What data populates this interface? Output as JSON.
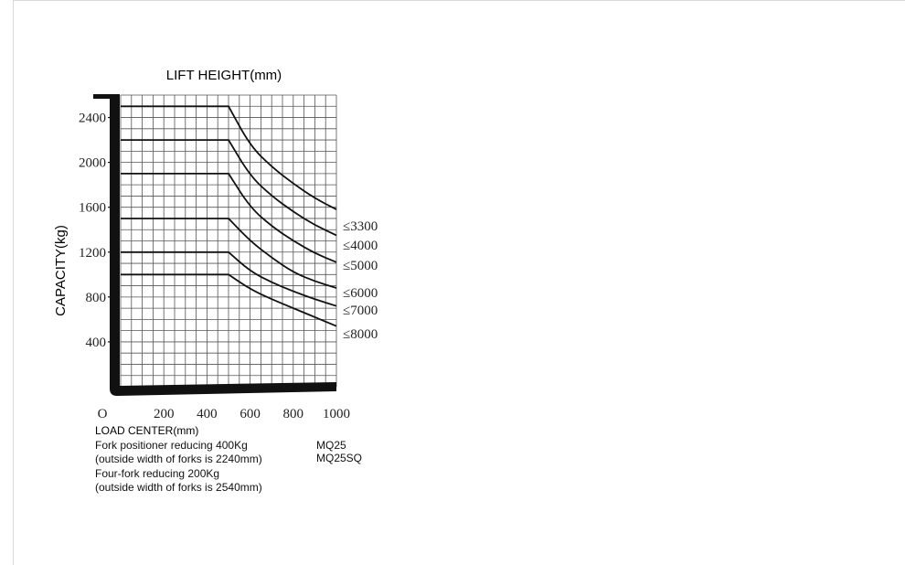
{
  "chart_data": {
    "type": "line",
    "title": "LIFT HEIGHT(mm)",
    "xlabel": "LOAD CENTER(mm)",
    "ylabel": "CAPACITY(kg)",
    "origin_label": "O",
    "xlim": [
      0,
      1000
    ],
    "ylim": [
      0,
      2600
    ],
    "x_ticks": [
      200,
      400,
      600,
      800,
      1000
    ],
    "y_ticks": [
      400,
      800,
      1200,
      1600,
      2000,
      2400
    ],
    "grid": true,
    "series": [
      {
        "name": "≤3300",
        "x": [
          0,
          500,
          600,
          700,
          800,
          900,
          1000
        ],
        "y": [
          2500,
          2500,
          2150,
          1960,
          1810,
          1680,
          1580
        ]
      },
      {
        "name": "≤4000",
        "x": [
          0,
          500,
          600,
          700,
          800,
          900,
          1000
        ],
        "y": [
          2200,
          2200,
          1880,
          1700,
          1560,
          1440,
          1350
        ]
      },
      {
        "name": "≤5000",
        "x": [
          0,
          500,
          600,
          700,
          800,
          900,
          1000
        ],
        "y": [
          1900,
          1900,
          1600,
          1430,
          1300,
          1190,
          1110
        ]
      },
      {
        "name": "≤6000",
        "x": [
          0,
          500,
          600,
          700,
          800,
          900,
          1000
        ],
        "y": [
          1500,
          1500,
          1300,
          1150,
          1020,
          940,
          880
        ]
      },
      {
        "name": "≤7000",
        "x": [
          0,
          500,
          600,
          700,
          800,
          900,
          1000
        ],
        "y": [
          1200,
          1200,
          1030,
          930,
          850,
          780,
          720
        ]
      },
      {
        "name": "≤8000",
        "x": [
          0,
          500,
          600,
          700,
          800,
          900,
          1000
        ],
        "y": [
          1000,
          1000,
          870,
          780,
          700,
          620,
          540
        ]
      }
    ]
  },
  "notes": {
    "line1": "Fork positioner  reducing 400Kg",
    "line2": "(outside width of forks is 2240mm)",
    "line3": "Four-fork reducing 200Kg",
    "line4": "(outside width of forks is 2540mm)"
  },
  "models": {
    "model1": "MQ25",
    "model2": "MQ25SQ"
  }
}
